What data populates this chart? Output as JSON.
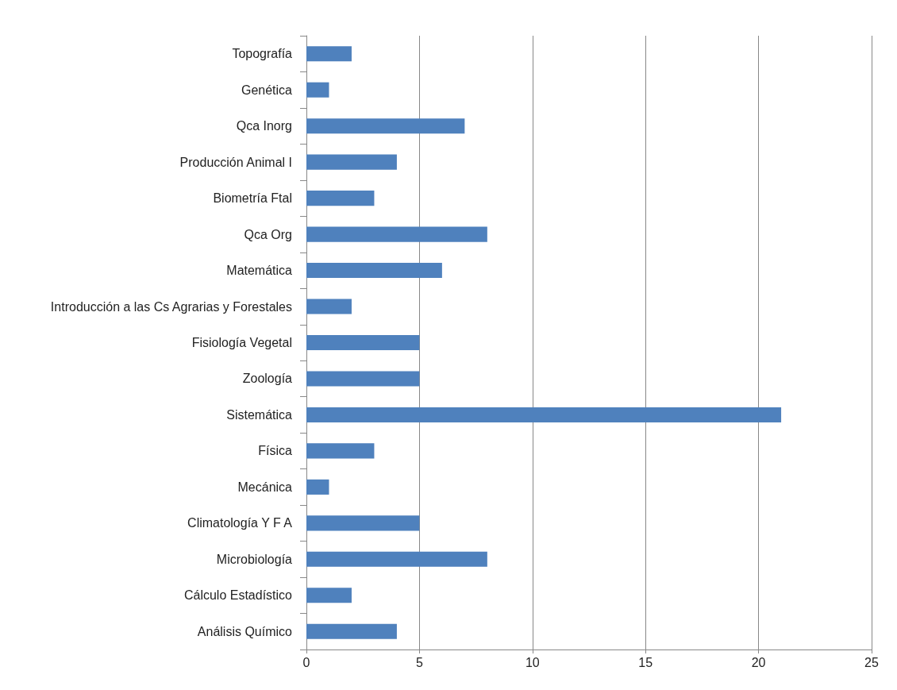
{
  "chart_data": {
    "type": "bar",
    "orientation": "horizontal",
    "categories": [
      "Topografía",
      "Genética",
      "Qca Inorg",
      "Producción Animal I",
      "Biometría Ftal",
      "Qca Org",
      "Matemática",
      "Introducción a las Cs Agrarias y Forestales",
      "Fisiología Vegetal",
      "Zoología",
      "Sistemática",
      "Física",
      "Mecánica",
      "Climatología Y F A",
      "Microbiología",
      "Cálculo Estadístico",
      "Análisis Químico"
    ],
    "values": [
      2,
      1,
      7,
      4,
      3,
      8,
      6,
      2,
      5,
      5,
      21,
      3,
      1,
      5,
      8,
      2,
      4
    ],
    "color": "#4f81bd",
    "xlim": [
      0,
      25
    ],
    "xticks": [
      0,
      5,
      10,
      15,
      20,
      25
    ],
    "grid": "x"
  }
}
